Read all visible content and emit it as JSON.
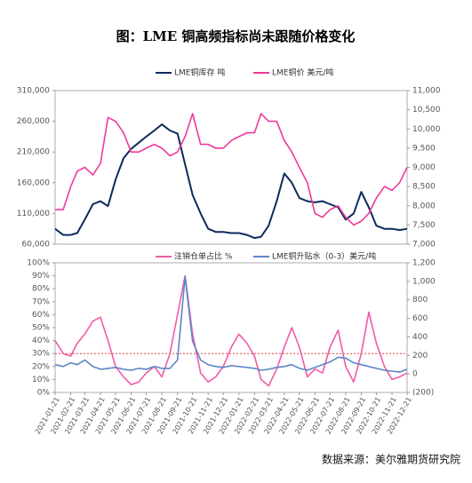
{
  "title": "图：LME 铜高频指标尚未跟随价格变化",
  "source": "数据来源：美尔雅期货研究院",
  "chart_data": [
    {
      "type": "line",
      "x": [
        "2021-01-21",
        "2021-02-06",
        "2021-02-21",
        "2021-03-06",
        "2021-03-21",
        "2021-04-06",
        "2021-04-21",
        "2021-05-06",
        "2021-05-21",
        "2021-06-06",
        "2021-06-21",
        "2021-07-06",
        "2021-07-21",
        "2021-08-06",
        "2021-08-21",
        "2021-09-06",
        "2021-09-21",
        "2021-10-06",
        "2021-10-21",
        "2021-11-06",
        "2021-11-21",
        "2021-12-06",
        "2021-12-21",
        "2022-01-06",
        "2022-01-21",
        "2022-02-06",
        "2022-02-21",
        "2022-03-06",
        "2022-03-21",
        "2022-04-06",
        "2022-04-21",
        "2022-05-06",
        "2022-05-21",
        "2022-06-06",
        "2022-06-21",
        "2022-07-06",
        "2022-07-21",
        "2022-08-06",
        "2022-08-21",
        "2022-09-06",
        "2022-09-21",
        "2022-10-06",
        "2022-10-21",
        "2022-11-06",
        "2022-11-21",
        "2022-12-06",
        "2022-12-21"
      ],
      "series": [
        {
          "name": "LME铜库存 吨",
          "color": "#0d2a5c",
          "values": [
            85000,
            75000,
            75000,
            78000,
            100000,
            125000,
            130000,
            122000,
            165000,
            200000,
            215000,
            225000,
            235000,
            245000,
            255000,
            245000,
            240000,
            190000,
            140000,
            110000,
            85000,
            80000,
            80000,
            78000,
            78000,
            75000,
            70000,
            72000,
            90000,
            130000,
            175000,
            160000,
            135000,
            130000,
            128000,
            130000,
            125000,
            120000,
            100000,
            110000,
            145000,
            120000,
            90000,
            85000,
            85000,
            83000,
            85000
          ]
        },
        {
          "name": "LME铜价 美元/吨",
          "color": "#f0399a",
          "axis": "y2",
          "values": [
            7900,
            7900,
            8500,
            8900,
            9000,
            8800,
            9100,
            10300,
            10200,
            9900,
            9400,
            9400,
            9500,
            9600,
            9500,
            9300,
            9400,
            9800,
            10400,
            9600,
            9600,
            9500,
            9500,
            9700,
            9800,
            9900,
            9900,
            10400,
            10200,
            10200,
            9700,
            9400,
            9000,
            8600,
            7800,
            7700,
            7900,
            8000,
            7700,
            7500,
            7600,
            7800,
            8200,
            8500,
            8400,
            8600,
            9000
          ]
        }
      ],
      "ylim": [
        60000,
        310000
      ],
      "yticks": [
        {
          "value": 60000,
          "label": "60,000"
        },
        {
          "value": 110000,
          "label": "110,000"
        },
        {
          "value": 160000,
          "label": "160,000"
        },
        {
          "value": 210000,
          "label": "210,000"
        },
        {
          "value": 260000,
          "label": "260,000"
        },
        {
          "value": 310000,
          "label": "310,000"
        }
      ],
      "y2lim": [
        7000,
        11000
      ],
      "y2ticks": [
        {
          "value": 7000,
          "label": "7,000"
        },
        {
          "value": 7500,
          "label": "7,500"
        },
        {
          "value": 8000,
          "label": "8,000"
        },
        {
          "value": 8500,
          "label": "8,500"
        },
        {
          "value": 9000,
          "label": "9,000"
        },
        {
          "value": 9500,
          "label": "9,500"
        },
        {
          "value": 10000,
          "label": "10,000"
        },
        {
          "value": 10500,
          "label": "10,500"
        },
        {
          "value": 11000,
          "label": "11,000"
        }
      ]
    },
    {
      "type": "line",
      "x": [
        "2021-01-21",
        "2021-02-06",
        "2021-02-21",
        "2021-03-06",
        "2021-03-21",
        "2021-04-06",
        "2021-04-21",
        "2021-05-06",
        "2021-05-21",
        "2021-06-06",
        "2021-06-21",
        "2021-07-06",
        "2021-07-21",
        "2021-08-06",
        "2021-08-21",
        "2021-09-06",
        "2021-09-21",
        "2021-10-06",
        "2021-10-21",
        "2021-11-06",
        "2021-11-21",
        "2021-12-06",
        "2021-12-21",
        "2022-01-06",
        "2022-01-21",
        "2022-02-06",
        "2022-02-21",
        "2022-03-06",
        "2022-03-21",
        "2022-04-06",
        "2022-04-21",
        "2022-05-06",
        "2022-05-21",
        "2022-06-06",
        "2022-06-21",
        "2022-07-06",
        "2022-07-21",
        "2022-08-06",
        "2022-08-21",
        "2022-09-06",
        "2022-09-21",
        "2022-10-06",
        "2022-10-21",
        "2022-11-06",
        "2022-11-21",
        "2022-12-06",
        "2022-12-21"
      ],
      "series": [
        {
          "name": "注销仓单占比 %",
          "color": "#f25aa8",
          "values": [
            40,
            30,
            28,
            38,
            45,
            55,
            58,
            40,
            20,
            12,
            6,
            8,
            15,
            20,
            12,
            30,
            60,
            90,
            45,
            15,
            8,
            12,
            20,
            35,
            45,
            38,
            28,
            10,
            5,
            18,
            35,
            50,
            35,
            12,
            18,
            15,
            35,
            48,
            20,
            8,
            30,
            62,
            38,
            20,
            10,
            12,
            15
          ]
        },
        {
          "name": "LME铜升贴水（0-3）美元/吨",
          "color": "#5b86c6",
          "axis": "y2",
          "values": [
            100,
            80,
            120,
            100,
            150,
            80,
            50,
            60,
            70,
            50,
            40,
            60,
            50,
            80,
            60,
            60,
            150,
            1050,
            350,
            150,
            100,
            80,
            70,
            90,
            80,
            70,
            60,
            40,
            50,
            70,
            80,
            100,
            60,
            40,
            70,
            100,
            130,
            180,
            170,
            120,
            100,
            80,
            60,
            40,
            30,
            20,
            50
          ]
        }
      ],
      "reference_line": {
        "value": 30,
        "color": "#e0463c"
      },
      "ylim": [
        0,
        100
      ],
      "yticks": [
        {
          "value": 0,
          "label": "0%"
        },
        {
          "value": 10,
          "label": "10%"
        },
        {
          "value": 20,
          "label": "20%"
        },
        {
          "value": 30,
          "label": "30%"
        },
        {
          "value": 40,
          "label": "40%"
        },
        {
          "value": 50,
          "label": "50%"
        },
        {
          "value": 60,
          "label": "60%"
        },
        {
          "value": 70,
          "label": "70%"
        },
        {
          "value": 80,
          "label": "80%"
        },
        {
          "value": 90,
          "label": "90%"
        },
        {
          "value": 100,
          "label": "100%"
        }
      ],
      "y2lim": [
        -200,
        1200
      ],
      "y2ticks": [
        {
          "value": -200,
          "label": "(200)"
        },
        0,
        200,
        400,
        600,
        800,
        {
          "value": 1000,
          "label": "1,000"
        },
        {
          "value": 1200,
          "label": "1,200"
        }
      ],
      "xticks": [
        "2021-01-21",
        "2021-02-21",
        "2021-03-21",
        "2021-04-21",
        "2021-05-21",
        "2021-06-21",
        "2021-07-21",
        "2021-08-21",
        "2021-09-21",
        "2021-10-21",
        "2021-11-21",
        "2021-12-21",
        "2022-01-21",
        "2022-02-21",
        "2022-03-21",
        "2022-04-21",
        "2022-05-21",
        "2022-06-21",
        "2022-07-21",
        "2022-08-21",
        "2022-09-21",
        "2022-10-21",
        "2022-11-21",
        "2022-12-21"
      ]
    }
  ]
}
